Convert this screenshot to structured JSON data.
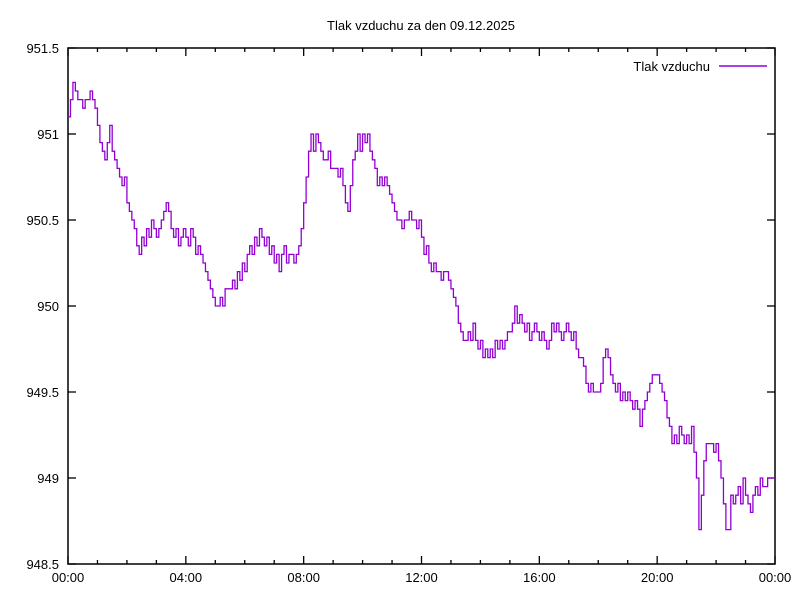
{
  "chart_data": {
    "type": "line",
    "title": "Tlak vzduchu za den 09.12.2025",
    "legend": [
      {
        "label": "Tlak vzduchu",
        "color": "#9400d3"
      }
    ],
    "legend_position": "top-right-inside",
    "grid": false,
    "xlabel": "",
    "ylabel": "",
    "xlim_minutes": [
      0,
      1440
    ],
    "ylim": [
      948.5,
      951.5
    ],
    "x_major_ticks": [
      {
        "minutes": 0,
        "label": "00:00"
      },
      {
        "minutes": 240,
        "label": "04:00"
      },
      {
        "minutes": 480,
        "label": "08:00"
      },
      {
        "minutes": 720,
        "label": "12:00"
      },
      {
        "minutes": 960,
        "label": "16:00"
      },
      {
        "minutes": 1200,
        "label": "20:00"
      },
      {
        "minutes": 1440,
        "label": "00:00"
      }
    ],
    "x_minor_tick_every_minutes": 60,
    "y_major_ticks": [
      {
        "value": 948.5,
        "label": "948.5"
      },
      {
        "value": 949.0,
        "label": "949"
      },
      {
        "value": 949.5,
        "label": "949.5"
      },
      {
        "value": 950.0,
        "label": "950"
      },
      {
        "value": 950.5,
        "label": "950.5"
      },
      {
        "value": 951.0,
        "label": "951"
      },
      {
        "value": 951.5,
        "label": "951.5"
      }
    ],
    "sample_step_minutes": 5,
    "values": [
      951.1,
      951.2,
      951.3,
      951.25,
      951.2,
      951.2,
      951.15,
      951.2,
      951.2,
      951.25,
      951.2,
      951.15,
      951.05,
      950.95,
      950.9,
      950.85,
      950.95,
      951.05,
      950.9,
      950.85,
      950.8,
      950.75,
      950.7,
      950.75,
      950.6,
      950.55,
      950.5,
      950.45,
      950.35,
      950.3,
      950.4,
      950.35,
      950.45,
      950.4,
      950.5,
      950.45,
      950.4,
      950.45,
      950.5,
      950.55,
      950.6,
      950.55,
      950.45,
      950.4,
      950.45,
      950.35,
      950.4,
      950.45,
      950.4,
      950.35,
      950.45,
      950.4,
      950.3,
      950.35,
      950.3,
      950.25,
      950.2,
      950.15,
      950.1,
      950.05,
      950.0,
      950.0,
      950.05,
      950.0,
      950.1,
      950.1,
      950.1,
      950.15,
      950.1,
      950.2,
      950.15,
      950.25,
      950.2,
      950.3,
      950.35,
      950.3,
      950.4,
      950.35,
      950.45,
      950.4,
      950.35,
      950.4,
      950.3,
      950.35,
      950.25,
      950.3,
      950.2,
      950.3,
      950.35,
      950.25,
      950.3,
      950.3,
      950.25,
      950.3,
      950.35,
      950.45,
      950.6,
      950.75,
      950.9,
      951.0,
      950.9,
      951.0,
      950.95,
      950.9,
      950.85,
      950.85,
      950.9,
      950.8,
      950.8,
      950.8,
      950.75,
      950.8,
      950.7,
      950.6,
      950.55,
      950.7,
      950.85,
      950.9,
      951.0,
      950.9,
      951.0,
      950.95,
      951.0,
      950.9,
      950.85,
      950.8,
      950.7,
      950.75,
      950.7,
      950.75,
      950.7,
      950.65,
      950.6,
      950.55,
      950.5,
      950.5,
      950.45,
      950.5,
      950.5,
      950.55,
      950.5,
      950.5,
      950.45,
      950.5,
      950.4,
      950.3,
      950.35,
      950.25,
      950.2,
      950.25,
      950.2,
      950.2,
      950.15,
      950.2,
      950.2,
      950.15,
      950.1,
      950.05,
      950.0,
      949.9,
      949.85,
      949.8,
      949.8,
      949.85,
      949.8,
      949.9,
      949.8,
      949.75,
      949.8,
      949.7,
      949.75,
      949.7,
      949.75,
      949.7,
      949.8,
      949.75,
      949.8,
      949.75,
      949.8,
      949.85,
      949.85,
      949.9,
      950.0,
      949.9,
      949.95,
      949.9,
      949.85,
      949.9,
      949.8,
      949.85,
      949.9,
      949.85,
      949.8,
      949.85,
      949.8,
      949.75,
      949.8,
      949.9,
      949.85,
      949.9,
      949.85,
      949.8,
      949.85,
      949.9,
      949.85,
      949.8,
      949.85,
      949.75,
      949.7,
      949.7,
      949.65,
      949.55,
      949.5,
      949.55,
      949.5,
      949.5,
      949.5,
      949.55,
      949.7,
      949.75,
      949.7,
      949.6,
      949.55,
      949.5,
      949.55,
      949.45,
      949.5,
      949.45,
      949.5,
      949.45,
      949.4,
      949.45,
      949.4,
      949.3,
      949.4,
      949.45,
      949.5,
      949.55,
      949.6,
      949.6,
      949.6,
      949.55,
      949.5,
      949.45,
      949.35,
      949.3,
      949.2,
      949.25,
      949.2,
      949.3,
      949.25,
      949.2,
      949.25,
      949.2,
      949.3,
      949.15,
      949.0,
      948.7,
      948.9,
      949.1,
      949.2,
      949.2,
      949.2,
      949.15,
      949.2,
      949.1,
      949.0,
      948.85,
      948.7,
      948.7,
      948.9,
      948.85,
      948.9,
      948.95,
      948.85,
      949.0,
      948.9,
      948.85,
      948.8,
      948.9,
      948.95,
      948.9,
      949.0,
      948.95,
      948.95,
      949.0,
      949.0,
      949.0,
      949.0
    ]
  }
}
